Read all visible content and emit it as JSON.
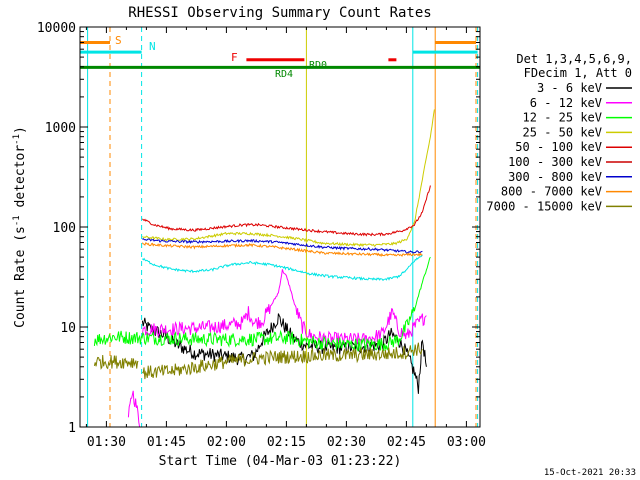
{
  "chart_data": {
    "type": "line",
    "title": "RHESSI Observing Summary Count Rates",
    "xlabel": "Start Time (04-Mar-03 01:23:22)",
    "ylabel": "Count Rate (s",
    "ylabel_sup1": "-1",
    "ylabel_mid": " detector",
    "ylabel_sup2": "-1",
    "ylabel_end": ")",
    "footer": "15-Oct-2021 20:33",
    "x_scale": "time (minutes)",
    "xlim": [
      83.4,
      183.4
    ],
    "x_ticks": [
      {
        "t": 90,
        "label": "01:30"
      },
      {
        "t": 105,
        "label": "01:45"
      },
      {
        "t": 120,
        "label": "02:00"
      },
      {
        "t": 135,
        "label": "02:15"
      },
      {
        "t": 150,
        "label": "02:30"
      },
      {
        "t": 165,
        "label": "02:45"
      },
      {
        "t": 180,
        "label": "03:00"
      }
    ],
    "y_scale": "log",
    "ylim": [
      1,
      10000
    ],
    "y_ticks": [
      {
        "v": 1,
        "label": "1"
      },
      {
        "v": 10,
        "label": "10"
      },
      {
        "v": 100,
        "label": "100"
      },
      {
        "v": 1000,
        "label": "1000"
      },
      {
        "v": 10000,
        "label": "10000"
      }
    ],
    "legend": {
      "placement": "right",
      "header": [
        "Det 1,3,4,5,6,9,",
        "FDecim 1, Att 0"
      ],
      "entries": [
        {
          "label": "3 - 6 keV",
          "color": "#000000"
        },
        {
          "label": "6 - 12 keV",
          "color": "#ff00ff"
        },
        {
          "label": "12 - 25 keV",
          "color": "#00ff00"
        },
        {
          "label": "25 - 50 keV",
          "color": "#cccc00"
        },
        {
          "label": "50 - 100 keV",
          "color": "#dd0000"
        },
        {
          "label": "100 - 300 keV",
          "color": "#cc0000"
        },
        {
          "label": "300 - 800 keV",
          "color": "#0000cc"
        },
        {
          "label": "800 - 7000 keV",
          "color": "#ff8800"
        },
        {
          "label": "7000 - 15000 keV",
          "color": "#808000"
        }
      ]
    },
    "flag_labels": {
      "saa": "S",
      "night": "N",
      "flare": "F",
      "rd4": "RD4",
      "rd0": "RD0"
    },
    "vertical_markers": [
      {
        "t": 85.3,
        "color": "#00e5e5",
        "style": "solid"
      },
      {
        "t": 90.9,
        "color": "#ff8800",
        "style": "dashed"
      },
      {
        "t": 98.8,
        "color": "#00e5e5",
        "style": "dashed"
      },
      {
        "t": 140.0,
        "color": "#cccc00",
        "style": "solid"
      },
      {
        "t": 166.6,
        "color": "#00e5e5",
        "style": "solid"
      },
      {
        "t": 172.2,
        "color": "#ff8800",
        "style": "solid"
      },
      {
        "t": 182.4,
        "color": "#ff8800",
        "style": "dashed"
      },
      {
        "t": 182.8,
        "color": "#00e5e5",
        "style": "dashed"
      }
    ],
    "flag_bars": [
      {
        "name": "saa",
        "color": "#ff8800",
        "y": 7000,
        "segments": [
          [
            83.4,
            90.9
          ],
          [
            172.2,
            182.4
          ]
        ]
      },
      {
        "name": "night",
        "color": "#00e5e5",
        "y": 5600,
        "segments": [
          [
            83.4,
            98.8
          ],
          [
            166.6,
            182.8
          ]
        ]
      },
      {
        "name": "flare",
        "color": "#ee0000",
        "y": 4700,
        "segments": [
          [
            125.0,
            139.5
          ],
          [
            160.5,
            162.5
          ]
        ]
      },
      {
        "name": "decimation",
        "color": "#008800",
        "y": 3950,
        "segments": [
          [
            83.4,
            183.4
          ]
        ]
      }
    ],
    "series": [
      {
        "label": "3 - 6 keV",
        "color": "#000000",
        "segments": [
          [
            [
              99,
              11
            ],
            [
              101,
              9.5
            ],
            [
              104,
              8.5
            ],
            [
              108,
              6.5
            ],
            [
              112,
              5.5
            ],
            [
              118,
              5.2
            ],
            [
              124,
              4.8
            ],
            [
              127,
              5.2
            ],
            [
              129,
              7.5
            ],
            [
              131,
              9.5
            ],
            [
              133,
              12.5
            ],
            [
              135,
              9.5
            ],
            [
              137,
              7.5
            ],
            [
              140,
              6.5
            ],
            [
              145,
              6.2
            ],
            [
              150,
              6.2
            ],
            [
              155,
              6.4
            ],
            [
              159,
              6.6
            ],
            [
              161,
              8.5
            ],
            [
              163,
              7.5
            ],
            [
              165,
              5.5
            ],
            [
              167,
              3.5
            ],
            [
              168,
              2.5
            ],
            [
              169,
              7.5
            ],
            [
              170,
              4
            ]
          ]
        ]
      },
      {
        "label": "6 - 12 keV",
        "color": "#ff00ff",
        "segments": [
          [
            [
              95.5,
              1.2
            ],
            [
              96.5,
              2.3
            ],
            [
              97.5,
              1.6
            ],
            [
              98.5,
              1.0
            ]
          ],
          [
            [
              99,
              9.5
            ],
            [
              105,
              9.5
            ],
            [
              111,
              9.7
            ],
            [
              117,
              10
            ],
            [
              121,
              10.5
            ],
            [
              124,
              11
            ],
            [
              125.5,
              14
            ],
            [
              127,
              11
            ],
            [
              129,
              11.5
            ],
            [
              131,
              16
            ],
            [
              133,
              22
            ],
            [
              134,
              37
            ],
            [
              135,
              32
            ],
            [
              136,
              24
            ],
            [
              137,
              17
            ],
            [
              138,
              13
            ],
            [
              139,
              10
            ],
            [
              141,
              8.2
            ],
            [
              145,
              7.6
            ],
            [
              150,
              7.5
            ],
            [
              155,
              7.5
            ],
            [
              159,
              8.5
            ],
            [
              161.5,
              14
            ],
            [
              163,
              9.5
            ],
            [
              165,
              8
            ],
            [
              167,
              10
            ],
            [
              169,
              12
            ],
            [
              170,
              13
            ]
          ]
        ]
      },
      {
        "label": "12 - 25 keV",
        "color": "#00ff00",
        "segments": [
          [
            [
              87,
              7.5
            ],
            [
              92,
              8
            ],
            [
              97,
              7.8
            ],
            [
              100,
              7.8
            ],
            [
              110,
              7.6
            ],
            [
              120,
              7.5
            ],
            [
              130,
              7.6
            ],
            [
              135,
              7.8
            ],
            [
              140,
              7.2
            ],
            [
              145,
              6.9
            ],
            [
              150,
              6.7
            ],
            [
              155,
              6.7
            ],
            [
              160,
              6.8
            ],
            [
              163,
              7.5
            ],
            [
              165,
              10
            ],
            [
              167,
              15
            ],
            [
              169,
              28
            ],
            [
              171,
              50
            ]
          ]
        ]
      },
      {
        "label": "25 - 50 keV",
        "color": "#cccc00",
        "segments": [
          [
            [
              99,
              80
            ],
            [
              105,
              75
            ],
            [
              112,
              76
            ],
            [
              120,
              86
            ],
            [
              126,
              86
            ],
            [
              132,
              82
            ],
            [
              138,
              76
            ],
            [
              144,
              69
            ],
            [
              150,
              67
            ],
            [
              157,
              66
            ],
            [
              162,
              68
            ],
            [
              165,
              75
            ],
            [
              167,
              110
            ],
            [
              169,
              300
            ],
            [
              171,
              800
            ],
            [
              172,
              1500
            ]
          ]
        ]
      },
      {
        "label": "50 - 100 keV",
        "color": "#dd0000",
        "segments": [
          [
            [
              99,
              120
            ],
            [
              102,
              105
            ],
            [
              106,
              96
            ],
            [
              112,
              93
            ],
            [
              118,
              99
            ],
            [
              124,
              105
            ],
            [
              128,
              105
            ],
            [
              133,
              100
            ],
            [
              138,
              95
            ],
            [
              144,
              90
            ],
            [
              150,
              86
            ],
            [
              156,
              84
            ],
            [
              160,
              85
            ],
            [
              164,
              92
            ],
            [
              167,
              105
            ],
            [
              169,
              140
            ],
            [
              171,
              260
            ]
          ]
        ]
      },
      {
        "label": "300 - 800 keV",
        "color": "#0000cc",
        "segments": [
          [
            [
              99,
              75
            ],
            [
              105,
              72
            ],
            [
              112,
              71
            ],
            [
              120,
              72
            ],
            [
              126,
              73
            ],
            [
              132,
              71
            ],
            [
              138,
              67
            ],
            [
              144,
              63
            ],
            [
              150,
              61
            ],
            [
              157,
              60
            ],
            [
              162,
              58
            ],
            [
              166,
              56
            ],
            [
              169,
              57
            ]
          ]
        ]
      },
      {
        "label": "800 - 7000 keV",
        "color": "#ff8800",
        "segments": [
          [
            [
              99,
              68
            ],
            [
              105,
              65
            ],
            [
              112,
              63
            ],
            [
              120,
              65
            ],
            [
              126,
              66
            ],
            [
              132,
              63
            ],
            [
              138,
              59
            ],
            [
              144,
              55
            ],
            [
              150,
              54
            ],
            [
              157,
              53
            ],
            [
              162,
              52
            ],
            [
              166,
              53
            ],
            [
              169,
              53
            ]
          ]
        ]
      },
      {
        "label": "100 - 300 keV",
        "color": "#00e5e5",
        "segments": [
          [
            [
              99,
              48
            ],
            [
              102,
              42
            ],
            [
              106,
              38
            ],
            [
              111,
              36
            ],
            [
              116,
              37
            ],
            [
              121,
              42
            ],
            [
              126,
              44
            ],
            [
              131,
              42
            ],
            [
              136,
              38
            ],
            [
              141,
              34
            ],
            [
              146,
              32
            ],
            [
              151,
              31
            ],
            [
              156,
              30
            ],
            [
              160,
              30
            ],
            [
              163,
              32
            ],
            [
              165,
              37
            ],
            [
              167,
              46
            ],
            [
              169,
              52
            ]
          ]
        ]
      },
      {
        "label": "7000 - 15000 keV",
        "color": "#808000",
        "segments": [
          [
            [
              87,
              4.5
            ],
            [
              92,
              4.5
            ],
            [
              98,
              4.5
            ]
          ],
          [
            [
              99,
              3.5
            ],
            [
              106,
              3.6
            ],
            [
              113,
              4.0
            ],
            [
              120,
              4.5
            ],
            [
              126,
              4.8
            ],
            [
              132,
              5.0
            ],
            [
              138,
              5.1
            ],
            [
              144,
              5.2
            ],
            [
              150,
              5.2
            ],
            [
              156,
              5.3
            ],
            [
              161,
              5.4
            ],
            [
              165,
              5.6
            ],
            [
              167,
              6
            ],
            [
              169,
              6
            ]
          ]
        ]
      }
    ]
  }
}
